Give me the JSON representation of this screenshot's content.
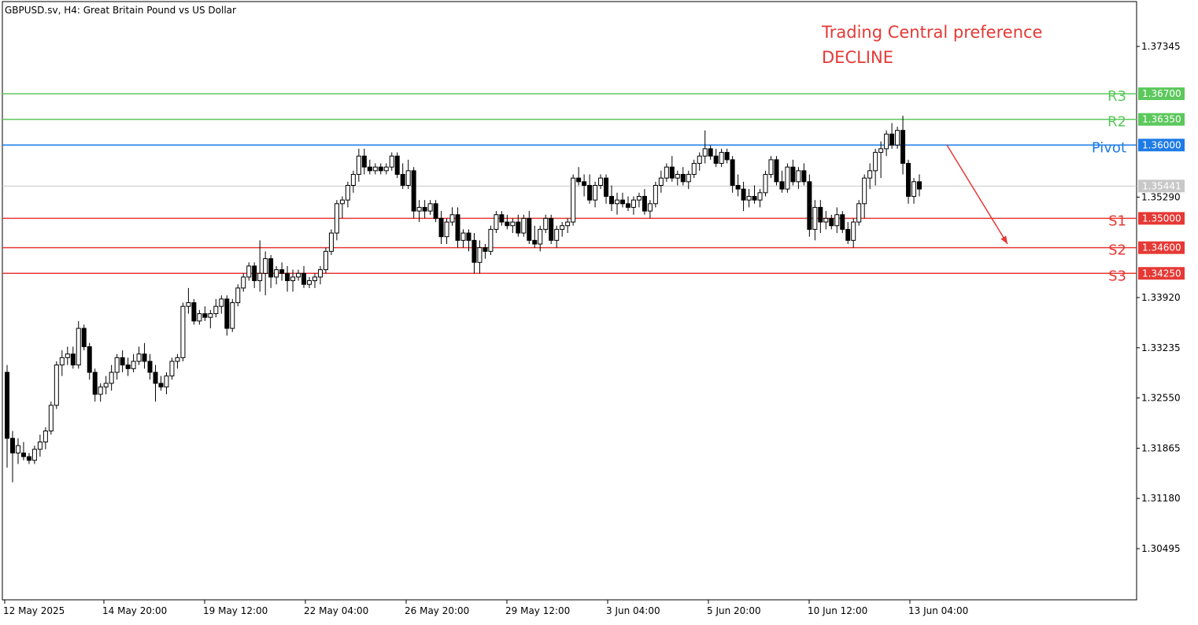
{
  "symbol_title": "GBPUSD.sv, H4:  Great Britain Pound vs US Dollar",
  "preference": {
    "line1": "Trading Central preference",
    "line2": "DECLINE",
    "color": "#e53935"
  },
  "colors": {
    "resistance": "#5cc85c",
    "pivot": "#1e7be6",
    "support": "#e53935",
    "current": "#c8c8c8",
    "candle": "#000000"
  },
  "chart_data": {
    "type": "candlestick",
    "price_axis_ticks": [
      "1.37345",
      "1.35290",
      "1.33920",
      "1.33235",
      "1.32550",
      "1.31865",
      "1.31180",
      "1.30495"
    ],
    "time_axis_labels": [
      "12 May 2025",
      "14 May 20:00",
      "19 May 12:00",
      "22 May 04:00",
      "26 May 20:00",
      "29 May 12:00",
      "3 Jun 04:00",
      "5 Jun 20:00",
      "10 Jun 12:00",
      "13 Jun 04:00"
    ],
    "ylim": [
      1.299,
      1.379
    ],
    "levels": [
      {
        "name": "R3",
        "value": 1.367,
        "label": "1.36700",
        "kind": "resistance"
      },
      {
        "name": "R2",
        "value": 1.3635,
        "label": "1.36350",
        "kind": "resistance"
      },
      {
        "name": "Pivot",
        "value": 1.36,
        "label": "1.36000",
        "kind": "pivot"
      },
      {
        "name": "S1",
        "value": 1.35,
        "label": "1.35000",
        "kind": "support"
      },
      {
        "name": "S2",
        "value": 1.346,
        "label": "1.34600",
        "kind": "support"
      },
      {
        "name": "S3",
        "value": 1.3425,
        "label": "1.34250",
        "kind": "support"
      }
    ],
    "current_price": {
      "value": 1.35441,
      "label": "1.35441"
    },
    "forecast_arrow": {
      "from": 1.36,
      "to": 1.3465
    },
    "candles": [
      [
        1.329,
        1.33,
        1.316,
        1.32
      ],
      [
        1.32,
        1.321,
        1.314,
        1.318
      ],
      [
        1.318,
        1.32,
        1.3165,
        1.319
      ],
      [
        1.318,
        1.3195,
        1.317,
        1.3175
      ],
      [
        1.3175,
        1.318,
        1.3165,
        1.317
      ],
      [
        1.317,
        1.319,
        1.3165,
        1.3185
      ],
      [
        1.3185,
        1.3205,
        1.3175,
        1.3195
      ],
      [
        1.3195,
        1.3215,
        1.3185,
        1.321
      ],
      [
        1.321,
        1.325,
        1.3205,
        1.3245
      ],
      [
        1.3245,
        1.3305,
        1.324,
        1.33
      ],
      [
        1.33,
        1.332,
        1.3285,
        1.331
      ],
      [
        1.331,
        1.3325,
        1.33,
        1.3315
      ],
      [
        1.3315,
        1.3325,
        1.3295,
        1.33
      ],
      [
        1.33,
        1.336,
        1.3295,
        1.335
      ],
      [
        1.335,
        1.3355,
        1.332,
        1.3325
      ],
      [
        1.3325,
        1.333,
        1.328,
        1.329
      ],
      [
        1.329,
        1.3295,
        1.325,
        1.326
      ],
      [
        1.326,
        1.3275,
        1.325,
        1.327
      ],
      [
        1.327,
        1.3285,
        1.326,
        1.3275
      ],
      [
        1.3275,
        1.33,
        1.3265,
        1.329
      ],
      [
        1.329,
        1.3315,
        1.328,
        1.331
      ],
      [
        1.331,
        1.332,
        1.329,
        1.33
      ],
      [
        1.33,
        1.331,
        1.3285,
        1.3295
      ],
      [
        1.3295,
        1.3315,
        1.329,
        1.3305
      ],
      [
        1.3305,
        1.3325,
        1.33,
        1.3315
      ],
      [
        1.3315,
        1.333,
        1.3295,
        1.3305
      ],
      [
        1.3305,
        1.3315,
        1.328,
        1.329
      ],
      [
        1.329,
        1.33,
        1.325,
        1.3275
      ],
      [
        1.3275,
        1.3285,
        1.3265,
        1.327
      ],
      [
        1.327,
        1.329,
        1.326,
        1.3285
      ],
      [
        1.3285,
        1.331,
        1.328,
        1.3305
      ],
      [
        1.3305,
        1.3315,
        1.3295,
        1.331
      ],
      [
        1.331,
        1.3385,
        1.3305,
        1.338
      ],
      [
        1.338,
        1.3405,
        1.337,
        1.3385
      ],
      [
        1.3385,
        1.339,
        1.3355,
        1.336
      ],
      [
        1.336,
        1.3375,
        1.3355,
        1.337
      ],
      [
        1.337,
        1.338,
        1.336,
        1.3365
      ],
      [
        1.3365,
        1.3375,
        1.335,
        1.337
      ],
      [
        1.337,
        1.339,
        1.3365,
        1.338
      ],
      [
        1.338,
        1.3395,
        1.337,
        1.339
      ],
      [
        1.339,
        1.3395,
        1.334,
        1.335
      ],
      [
        1.335,
        1.339,
        1.3345,
        1.3385
      ],
      [
        1.3385,
        1.341,
        1.338,
        1.3405
      ],
      [
        1.3405,
        1.3425,
        1.34,
        1.342
      ],
      [
        1.342,
        1.344,
        1.3415,
        1.3435
      ],
      [
        1.3435,
        1.344,
        1.3405,
        1.3415
      ],
      [
        1.3415,
        1.347,
        1.34,
        1.3425
      ],
      [
        1.3425,
        1.3455,
        1.3395,
        1.3445
      ],
      [
        1.3445,
        1.345,
        1.3405,
        1.342
      ],
      [
        1.342,
        1.3435,
        1.341,
        1.343
      ],
      [
        1.343,
        1.344,
        1.3415,
        1.3425
      ],
      [
        1.3425,
        1.3435,
        1.34,
        1.3415
      ],
      [
        1.3415,
        1.343,
        1.34,
        1.342
      ],
      [
        1.342,
        1.343,
        1.3415,
        1.3425
      ],
      [
        1.3425,
        1.3435,
        1.3405,
        1.341
      ],
      [
        1.341,
        1.342,
        1.3405,
        1.3415
      ],
      [
        1.3415,
        1.3425,
        1.3405,
        1.342
      ],
      [
        1.342,
        1.3435,
        1.341,
        1.343
      ],
      [
        1.343,
        1.346,
        1.3425,
        1.3455
      ],
      [
        1.3455,
        1.3485,
        1.345,
        1.348
      ],
      [
        1.348,
        1.3525,
        1.347,
        1.352
      ],
      [
        1.352,
        1.353,
        1.35,
        1.3525
      ],
      [
        1.3525,
        1.355,
        1.3515,
        1.3545
      ],
      [
        1.3545,
        1.3565,
        1.3535,
        1.356
      ],
      [
        1.356,
        1.3595,
        1.355,
        1.3585
      ],
      [
        1.3585,
        1.3595,
        1.356,
        1.357
      ],
      [
        1.357,
        1.358,
        1.356,
        1.3565
      ],
      [
        1.3565,
        1.3575,
        1.356,
        1.357
      ],
      [
        1.357,
        1.3575,
        1.356,
        1.3565
      ],
      [
        1.3565,
        1.3575,
        1.356,
        1.357
      ],
      [
        1.357,
        1.359,
        1.3565,
        1.3585
      ],
      [
        1.3585,
        1.359,
        1.3555,
        1.356
      ],
      [
        1.356,
        1.3575,
        1.354,
        1.3545
      ],
      [
        1.3545,
        1.358,
        1.354,
        1.3565
      ],
      [
        1.3565,
        1.357,
        1.35,
        1.351
      ],
      [
        1.351,
        1.3525,
        1.3495,
        1.3515
      ],
      [
        1.3515,
        1.3525,
        1.35,
        1.351
      ],
      [
        1.351,
        1.3525,
        1.3505,
        1.352
      ],
      [
        1.352,
        1.3525,
        1.3495,
        1.35
      ],
      [
        1.35,
        1.351,
        1.3465,
        1.3475
      ],
      [
        1.3475,
        1.35,
        1.3465,
        1.3495
      ],
      [
        1.3495,
        1.3515,
        1.349,
        1.3505
      ],
      [
        1.3505,
        1.3515,
        1.346,
        1.347
      ],
      [
        1.347,
        1.3485,
        1.346,
        1.348
      ],
      [
        1.348,
        1.3485,
        1.3455,
        1.347
      ],
      [
        1.347,
        1.348,
        1.3425,
        1.344
      ],
      [
        1.344,
        1.347,
        1.3425,
        1.346
      ],
      [
        1.346,
        1.3465,
        1.3445,
        1.3455
      ],
      [
        1.3455,
        1.349,
        1.345,
        1.3485
      ],
      [
        1.3485,
        1.351,
        1.348,
        1.3505
      ],
      [
        1.3505,
        1.351,
        1.349,
        1.3495
      ],
      [
        1.3495,
        1.3505,
        1.3485,
        1.349
      ],
      [
        1.349,
        1.35,
        1.348,
        1.3495
      ],
      [
        1.3495,
        1.3505,
        1.3475,
        1.348
      ],
      [
        1.348,
        1.3505,
        1.3475,
        1.35
      ],
      [
        1.35,
        1.351,
        1.3465,
        1.347
      ],
      [
        1.347,
        1.349,
        1.346,
        1.3465
      ],
      [
        1.3465,
        1.349,
        1.3455,
        1.3485
      ],
      [
        1.3485,
        1.3505,
        1.348,
        1.35
      ],
      [
        1.35,
        1.3505,
        1.3465,
        1.347
      ],
      [
        1.347,
        1.349,
        1.346,
        1.3485
      ],
      [
        1.3485,
        1.3495,
        1.3475,
        1.349
      ],
      [
        1.349,
        1.35,
        1.348,
        1.3495
      ],
      [
        1.3495,
        1.356,
        1.349,
        1.3555
      ],
      [
        1.3555,
        1.357,
        1.3545,
        1.355
      ],
      [
        1.355,
        1.356,
        1.353,
        1.3545
      ],
      [
        1.3545,
        1.356,
        1.352,
        1.3525
      ],
      [
        1.3525,
        1.355,
        1.3515,
        1.3545
      ],
      [
        1.3545,
        1.356,
        1.354,
        1.3555
      ],
      [
        1.3555,
        1.356,
        1.352,
        1.353
      ],
      [
        1.353,
        1.3545,
        1.351,
        1.352
      ],
      [
        1.352,
        1.3535,
        1.3505,
        1.3525
      ],
      [
        1.3525,
        1.3535,
        1.3515,
        1.352
      ],
      [
        1.352,
        1.353,
        1.351,
        1.3515
      ],
      [
        1.3515,
        1.353,
        1.3505,
        1.3525
      ],
      [
        1.3525,
        1.3535,
        1.3515,
        1.353
      ],
      [
        1.353,
        1.354,
        1.3505,
        1.351
      ],
      [
        1.351,
        1.3525,
        1.35,
        1.352
      ],
      [
        1.352,
        1.355,
        1.3515,
        1.3545
      ],
      [
        1.3545,
        1.3565,
        1.3535,
        1.3555
      ],
      [
        1.3555,
        1.3575,
        1.355,
        1.357
      ],
      [
        1.357,
        1.3585,
        1.355,
        1.3555
      ],
      [
        1.3555,
        1.3565,
        1.3545,
        1.356
      ],
      [
        1.356,
        1.357,
        1.3545,
        1.355
      ],
      [
        1.355,
        1.3565,
        1.354,
        1.356
      ],
      [
        1.356,
        1.358,
        1.3555,
        1.3575
      ],
      [
        1.3575,
        1.359,
        1.3565,
        1.3585
      ],
      [
        1.3585,
        1.362,
        1.3575,
        1.3595
      ],
      [
        1.3595,
        1.36,
        1.358,
        1.3585
      ],
      [
        1.3585,
        1.3595,
        1.357,
        1.3575
      ],
      [
        1.3575,
        1.3595,
        1.357,
        1.359
      ],
      [
        1.359,
        1.3595,
        1.3575,
        1.358
      ],
      [
        1.358,
        1.3585,
        1.3535,
        1.3545
      ],
      [
        1.3545,
        1.356,
        1.353,
        1.354
      ],
      [
        1.354,
        1.355,
        1.351,
        1.3525
      ],
      [
        1.3525,
        1.354,
        1.3515,
        1.353
      ],
      [
        1.353,
        1.3545,
        1.352,
        1.3525
      ],
      [
        1.3525,
        1.354,
        1.3515,
        1.3535
      ],
      [
        1.3535,
        1.3565,
        1.353,
        1.356
      ],
      [
        1.356,
        1.3585,
        1.3555,
        1.358
      ],
      [
        1.358,
        1.3585,
        1.3545,
        1.355
      ],
      [
        1.355,
        1.3565,
        1.3535,
        1.354
      ],
      [
        1.354,
        1.3575,
        1.3535,
        1.357
      ],
      [
        1.357,
        1.358,
        1.3545,
        1.355
      ],
      [
        1.355,
        1.357,
        1.354,
        1.3565
      ],
      [
        1.3565,
        1.3575,
        1.3545,
        1.355
      ],
      [
        1.355,
        1.356,
        1.3475,
        1.3485
      ],
      [
        1.3485,
        1.3525,
        1.347,
        1.3515
      ],
      [
        1.3515,
        1.3525,
        1.348,
        1.3495
      ],
      [
        1.3495,
        1.351,
        1.3485,
        1.35
      ],
      [
        1.35,
        1.3505,
        1.3485,
        1.349
      ],
      [
        1.349,
        1.3515,
        1.348,
        1.3505
      ],
      [
        1.3505,
        1.351,
        1.348,
        1.3485
      ],
      [
        1.3485,
        1.3495,
        1.3465,
        1.347
      ],
      [
        1.347,
        1.35,
        1.346,
        1.3495
      ],
      [
        1.3495,
        1.3525,
        1.349,
        1.352
      ],
      [
        1.352,
        1.356,
        1.35,
        1.3555
      ],
      [
        1.3555,
        1.3575,
        1.354,
        1.3565
      ],
      [
        1.3565,
        1.3595,
        1.3545,
        1.359
      ],
      [
        1.359,
        1.3605,
        1.3555,
        1.3595
      ],
      [
        1.3595,
        1.362,
        1.3585,
        1.3615
      ],
      [
        1.3615,
        1.363,
        1.3595,
        1.36
      ],
      [
        1.36,
        1.3625,
        1.3595,
        1.362
      ],
      [
        1.362,
        1.364,
        1.356,
        1.3575
      ],
      [
        1.3575,
        1.358,
        1.352,
        1.353
      ],
      [
        1.353,
        1.3555,
        1.352,
        1.355
      ],
      [
        1.355,
        1.356,
        1.353,
        1.354
      ]
    ]
  }
}
